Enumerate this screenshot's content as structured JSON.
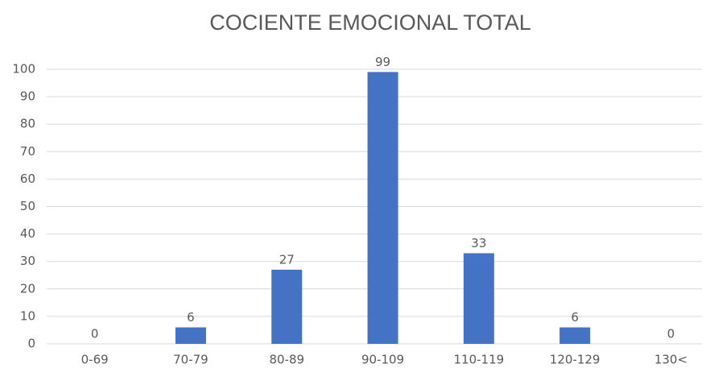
{
  "chart_data": {
    "type": "bar",
    "title": "COCIENTE EMOCIONAL TOTAL",
    "categories": [
      "0-69",
      "70-79",
      "80-89",
      "90-109",
      "110-119",
      "120-129",
      "130<"
    ],
    "values": [
      0,
      6,
      27,
      99,
      33,
      6,
      0
    ],
    "color": "#4472c4",
    "ylim": [
      0,
      100
    ],
    "yticks": [
      0,
      10,
      20,
      30,
      40,
      50,
      60,
      70,
      80,
      90,
      100
    ],
    "grid": true
  }
}
